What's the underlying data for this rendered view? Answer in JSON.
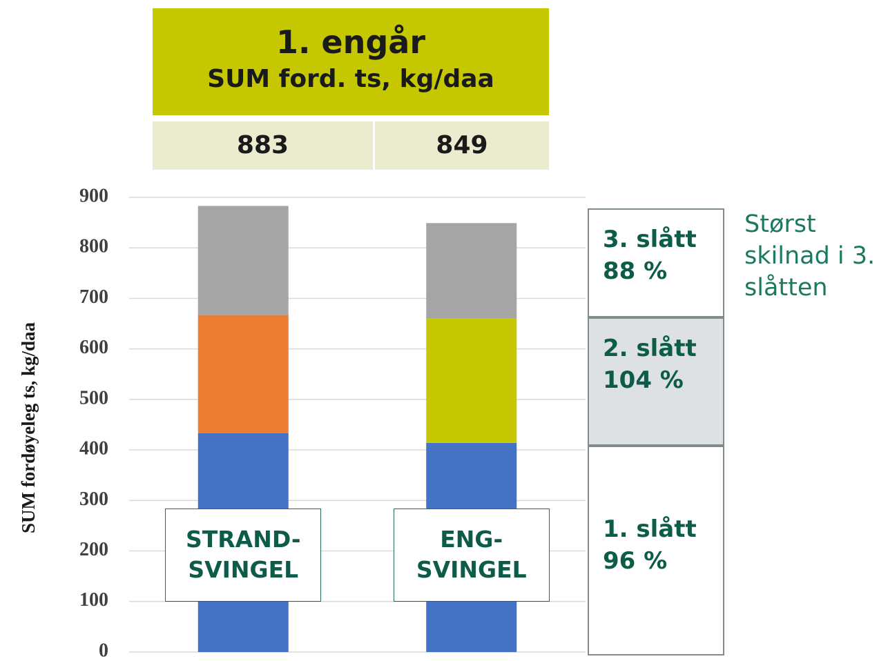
{
  "chart_data": {
    "type": "stacked_bar",
    "title": "1. engår",
    "subtitle": "SUM ford. ts, kg/daa",
    "totals": [
      883,
      849
    ],
    "y_label": "SUM fordøyeleg ts, kg/daa",
    "categories": [
      "STRAND-\nSVINGEL",
      "ENG-\nSVINGEL"
    ],
    "series": [
      {
        "name": "1. slått",
        "colors": [
          "#4472c4",
          "#4472c4"
        ],
        "values": [
          433,
          414
        ],
        "ratio": 96,
        "ratio_label": "96 %"
      },
      {
        "name": "2. slått",
        "colors": [
          "#ed7d31",
          "#c5c800"
        ],
        "values": [
          234,
          246
        ],
        "ratio": 104,
        "ratio_label": "104 %"
      },
      {
        "name": "3. slått",
        "colors": [
          "#a5a5a5",
          "#a5a5a5"
        ],
        "values": [
          216,
          189
        ],
        "ratio": 88,
        "ratio_label": "88 %"
      }
    ],
    "ylim": [
      0,
      900
    ],
    "yticks": [
      0,
      100,
      200,
      300,
      400,
      500,
      600,
      700,
      800,
      900
    ],
    "grid": true,
    "annotation": "Størst skilnad i 3. slåtten"
  }
}
